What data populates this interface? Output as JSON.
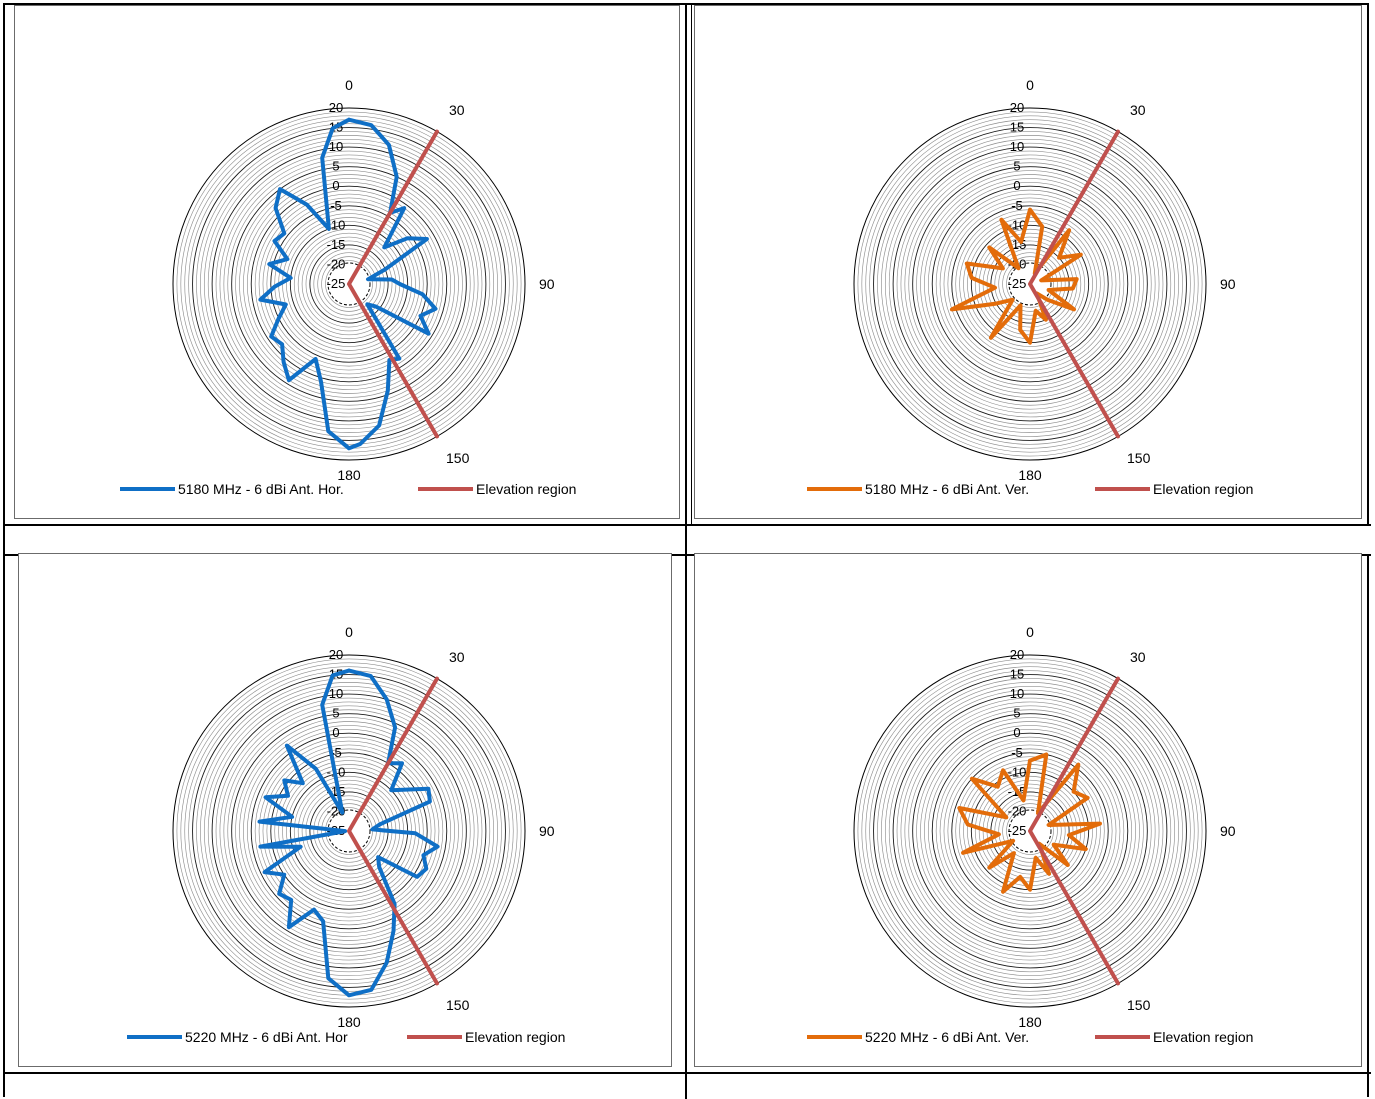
{
  "chart_data": [
    {
      "type": "polar-line",
      "title": "",
      "angle_labels": [
        "0",
        "30",
        "90",
        "150",
        "180"
      ],
      "radial_ticks": [
        "20",
        "15",
        "10",
        "5",
        "0",
        "-5",
        "-10",
        "-15",
        "-20",
        "-25"
      ],
      "radial_range": [
        -25,
        20
      ],
      "series": [
        {
          "name": "5180 MHz   -  6 dBi Ant. Hor.",
          "color": "#0f6fc6",
          "points": [
            {
              "angle": 0,
              "value": 17
            },
            {
              "angle": 8,
              "value": 16
            },
            {
              "angle": 16,
              "value": 12
            },
            {
              "angle": 24,
              "value": 5
            },
            {
              "angle": 30,
              "value": -4
            },
            {
              "angle": 36,
              "value": -1
            },
            {
              "angle": 44,
              "value": -12
            },
            {
              "angle": 52,
              "value": -6
            },
            {
              "angle": 60,
              "value": -2
            },
            {
              "angle": 68,
              "value": -15
            },
            {
              "angle": 76,
              "value": -20
            },
            {
              "angle": 84,
              "value": -14
            },
            {
              "angle": 90,
              "value": -12
            },
            {
              "angle": 98,
              "value": -6
            },
            {
              "angle": 106,
              "value": -2
            },
            {
              "angle": 114,
              "value": -5
            },
            {
              "angle": 122,
              "value": -1
            },
            {
              "angle": 130,
              "value": -16
            },
            {
              "angle": 138,
              "value": -18
            },
            {
              "angle": 146,
              "value": -2
            },
            {
              "angle": 152,
              "value": -3
            },
            {
              "angle": 160,
              "value": 4
            },
            {
              "angle": 168,
              "value": 12
            },
            {
              "angle": 176,
              "value": 16
            },
            {
              "angle": 180,
              "value": 17
            },
            {
              "angle": 188,
              "value": 13
            },
            {
              "angle": 196,
              "value": 1
            },
            {
              "angle": 204,
              "value": -4
            },
            {
              "angle": 212,
              "value": 4
            },
            {
              "angle": 220,
              "value": 1
            },
            {
              "angle": 228,
              "value": -2
            },
            {
              "angle": 236,
              "value": -1
            },
            {
              "angle": 244,
              "value": -5
            },
            {
              "angle": 252,
              "value": -8
            },
            {
              "angle": 260,
              "value": -2
            },
            {
              "angle": 268,
              "value": -6
            },
            {
              "angle": 276,
              "value": -10
            },
            {
              "angle": 284,
              "value": -4
            },
            {
              "angle": 292,
              "value": -8
            },
            {
              "angle": 300,
              "value": -3
            },
            {
              "angle": 308,
              "value": -4
            },
            {
              "angle": 316,
              "value": 2
            },
            {
              "angle": 324,
              "value": 5
            },
            {
              "angle": 332,
              "value": -2
            },
            {
              "angle": 340,
              "value": -10
            },
            {
              "angle": 348,
              "value": 8
            },
            {
              "angle": 354,
              "value": 15
            },
            {
              "angle": 360,
              "value": 17
            }
          ]
        },
        {
          "name": "Elevation region",
          "color": "#c0504d",
          "points": [
            {
              "angle": 30,
              "value": 20
            },
            {
              "angle": 0,
              "value": -25
            },
            {
              "angle": 150,
              "value": 20
            }
          ]
        }
      ]
    },
    {
      "type": "polar-line",
      "title": "",
      "angle_labels": [
        "0",
        "30",
        "90",
        "150",
        "180"
      ],
      "radial_ticks": [
        "20",
        "15",
        "10",
        "5",
        "0",
        "-5",
        "-10",
        "-15",
        "-20",
        "-25"
      ],
      "radial_range": [
        -25,
        20
      ],
      "series": [
        {
          "name": "5180 MHz   -  6 dBi Ant. Ver.",
          "color": "#e36c0a",
          "points": [
            {
              "angle": 0,
              "value": -6
            },
            {
              "angle": 12,
              "value": -10
            },
            {
              "angle": 24,
              "value": -22
            },
            {
              "angle": 36,
              "value": -8
            },
            {
              "angle": 48,
              "value": -15
            },
            {
              "angle": 60,
              "value": -10
            },
            {
              "angle": 72,
              "value": -22
            },
            {
              "angle": 84,
              "value": -13
            },
            {
              "angle": 96,
              "value": -14
            },
            {
              "angle": 108,
              "value": -20
            },
            {
              "angle": 120,
              "value": -12
            },
            {
              "angle": 132,
              "value": -19
            },
            {
              "angle": 144,
              "value": -22
            },
            {
              "angle": 156,
              "value": -15
            },
            {
              "angle": 168,
              "value": -18
            },
            {
              "angle": 180,
              "value": -10
            },
            {
              "angle": 192,
              "value": -13
            },
            {
              "angle": 204,
              "value": -19
            },
            {
              "angle": 216,
              "value": -8
            },
            {
              "angle": 228,
              "value": -19
            },
            {
              "angle": 240,
              "value": -15
            },
            {
              "angle": 252,
              "value": -4
            },
            {
              "angle": 264,
              "value": -16
            },
            {
              "angle": 276,
              "value": -10
            },
            {
              "angle": 288,
              "value": -8
            },
            {
              "angle": 300,
              "value": -17
            },
            {
              "angle": 312,
              "value": -11
            },
            {
              "angle": 324,
              "value": -20
            },
            {
              "angle": 336,
              "value": -7
            },
            {
              "angle": 348,
              "value": -14
            },
            {
              "angle": 360,
              "value": -6
            }
          ]
        },
        {
          "name": "Elevation region",
          "color": "#c0504d",
          "points": [
            {
              "angle": 30,
              "value": 20
            },
            {
              "angle": 0,
              "value": -25
            },
            {
              "angle": 150,
              "value": 20
            }
          ]
        }
      ]
    },
    {
      "type": "polar-line",
      "title": "",
      "angle_labels": [
        "0",
        "30",
        "90",
        "150",
        "180"
      ],
      "radial_ticks": [
        "20",
        "15",
        "10",
        "5",
        "0",
        "-5",
        "-10",
        "-15",
        "-20",
        "-25"
      ],
      "radial_range": [
        -25,
        20
      ],
      "series": [
        {
          "name": "5220 MHz  -  6 dBi Ant. Hor",
          "color": "#0f6fc6",
          "points": [
            {
              "angle": 0,
              "value": 16
            },
            {
              "angle": 8,
              "value": 15
            },
            {
              "angle": 16,
              "value": 10
            },
            {
              "angle": 24,
              "value": 4
            },
            {
              "angle": 30,
              "value": -5
            },
            {
              "angle": 38,
              "value": -3
            },
            {
              "angle": 46,
              "value": -10
            },
            {
              "angle": 54,
              "value": -7
            },
            {
              "angle": 62,
              "value": -2
            },
            {
              "angle": 70,
              "value": -3
            },
            {
              "angle": 78,
              "value": -17
            },
            {
              "angle": 86,
              "value": -19
            },
            {
              "angle": 92,
              "value": -8
            },
            {
              "angle": 100,
              "value": -2
            },
            {
              "angle": 108,
              "value": -5
            },
            {
              "angle": 116,
              "value": -3
            },
            {
              "angle": 124,
              "value": -4
            },
            {
              "angle": 132,
              "value": -15
            },
            {
              "angle": 140,
              "value": -13
            },
            {
              "angle": 148,
              "value": -3
            },
            {
              "angle": 156,
              "value": 3
            },
            {
              "angle": 164,
              "value": 10
            },
            {
              "angle": 172,
              "value": 16
            },
            {
              "angle": 180,
              "value": 17
            },
            {
              "angle": 188,
              "value": 13
            },
            {
              "angle": 196,
              "value": -1
            },
            {
              "angle": 204,
              "value": -3
            },
            {
              "angle": 212,
              "value": 4
            },
            {
              "angle": 220,
              "value": -2
            },
            {
              "angle": 228,
              "value": -1
            },
            {
              "angle": 236,
              "value": -5
            },
            {
              "angle": 244,
              "value": -1
            },
            {
              "angle": 252,
              "value": -12
            },
            {
              "angle": 260,
              "value": -2
            },
            {
              "angle": 268,
              "value": -24
            },
            {
              "angle": 276,
              "value": -2
            },
            {
              "angle": 284,
              "value": -10
            },
            {
              "angle": 292,
              "value": -2
            },
            {
              "angle": 300,
              "value": -7
            },
            {
              "angle": 308,
              "value": -4
            },
            {
              "angle": 316,
              "value": -8
            },
            {
              "angle": 324,
              "value": 2
            },
            {
              "angle": 332,
              "value": -7
            },
            {
              "angle": 340,
              "value": -20
            },
            {
              "angle": 348,
              "value": 8
            },
            {
              "angle": 354,
              "value": 15
            },
            {
              "angle": 360,
              "value": 16
            }
          ]
        },
        {
          "name": "Elevation region",
          "color": "#c0504d",
          "points": [
            {
              "angle": 30,
              "value": 20
            },
            {
              "angle": 0,
              "value": -25
            },
            {
              "angle": 150,
              "value": 20
            }
          ]
        }
      ]
    },
    {
      "type": "polar-line",
      "title": "",
      "angle_labels": [
        "0",
        "30",
        "90",
        "150",
        "180"
      ],
      "radial_ticks": [
        "20",
        "15",
        "10",
        "5",
        "0",
        "-5",
        "-10",
        "-15",
        "-20",
        "-25"
      ],
      "radial_range": [
        -25,
        20
      ],
      "series": [
        {
          "name": "5220 MHz   -  6 dBi Ant. Ver.",
          "color": "#e36c0a",
          "points": [
            {
              "angle": 0,
              "value": -7
            },
            {
              "angle": 12,
              "value": -5
            },
            {
              "angle": 24,
              "value": -20
            },
            {
              "angle": 36,
              "value": -4
            },
            {
              "angle": 48,
              "value": -10
            },
            {
              "angle": 60,
              "value": -8
            },
            {
              "angle": 72,
              "value": -20
            },
            {
              "angle": 84,
              "value": -7
            },
            {
              "angle": 96,
              "value": -15
            },
            {
              "angle": 108,
              "value": -10
            },
            {
              "angle": 120,
              "value": -18
            },
            {
              "angle": 132,
              "value": -12
            },
            {
              "angle": 144,
              "value": -21
            },
            {
              "angle": 156,
              "value": -13
            },
            {
              "angle": 168,
              "value": -18
            },
            {
              "angle": 180,
              "value": -10
            },
            {
              "angle": 192,
              "value": -13
            },
            {
              "angle": 204,
              "value": -8
            },
            {
              "angle": 216,
              "value": -18
            },
            {
              "angle": 228,
              "value": -11
            },
            {
              "angle": 240,
              "value": -20
            },
            {
              "angle": 252,
              "value": -7
            },
            {
              "angle": 264,
              "value": -17
            },
            {
              "angle": 276,
              "value": -9
            },
            {
              "angle": 288,
              "value": -6
            },
            {
              "angle": 300,
              "value": -18
            },
            {
              "angle": 312,
              "value": -5
            },
            {
              "angle": 324,
              "value": -11
            },
            {
              "angle": 336,
              "value": -8
            },
            {
              "angle": 348,
              "value": -17
            },
            {
              "angle": 360,
              "value": -7
            }
          ]
        },
        {
          "name": "Elevation region",
          "color": "#c0504d",
          "points": [
            {
              "angle": 30,
              "value": 20
            },
            {
              "angle": 0,
              "value": -25
            },
            {
              "angle": 150,
              "value": 20
            }
          ]
        }
      ]
    }
  ]
}
